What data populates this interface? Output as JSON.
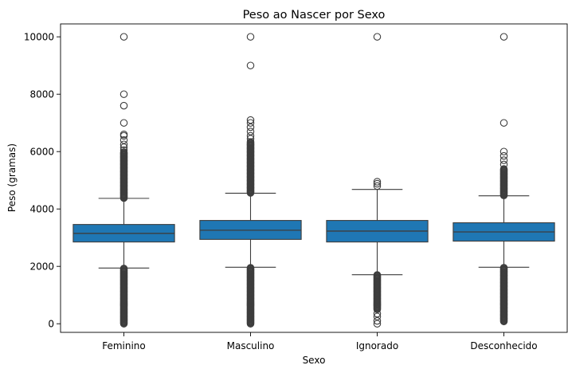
{
  "chart_data": {
    "type": "boxplot",
    "title": "Peso ao Nascer por Sexo",
    "xlabel": "Sexo",
    "ylabel": "Peso (gramas)",
    "ylim": [
      -300,
      10450
    ],
    "yticks": [
      0,
      2000,
      4000,
      6000,
      8000,
      10000
    ],
    "grid": false,
    "colors": {
      "box": "#1f77b4",
      "line": "#3d3d3d"
    },
    "categories": [
      "Feminino",
      "Masculino",
      "Ignorado",
      "Desconhecido"
    ],
    "boxes": [
      {
        "category": "Feminino",
        "whisker_low": 1940,
        "q1": 2850,
        "median": 3150,
        "q3": 3460,
        "whisker_high": 4370,
        "outlier_bands": [
          [
            0,
            1930
          ],
          [
            4380,
            6000
          ]
        ],
        "outliers": [
          6050,
          6150,
          6250,
          6400,
          6550,
          6600,
          7000,
          7600,
          8000,
          10000
        ]
      },
      {
        "category": "Masculino",
        "whisker_low": 1970,
        "q1": 2940,
        "median": 3260,
        "q3": 3600,
        "whisker_high": 4550,
        "outlier_bands": [
          [
            0,
            1960
          ],
          [
            4560,
            6350
          ]
        ],
        "outliers": [
          6450,
          6550,
          6700,
          6850,
          7000,
          7100,
          9000,
          10000
        ]
      },
      {
        "category": "Ignorado",
        "whisker_low": 1710,
        "q1": 2850,
        "median": 3230,
        "q3": 3600,
        "whisker_high": 4680,
        "outlier_bands": [
          [
            500,
            1700
          ]
        ],
        "outliers": [
          0,
          100,
          250,
          350,
          4800,
          4880,
          4950,
          10000
        ]
      },
      {
        "category": "Desconhecido",
        "whisker_low": 1970,
        "q1": 2880,
        "median": 3200,
        "q3": 3520,
        "whisker_high": 4460,
        "outlier_bands": [
          [
            80,
            1960
          ],
          [
            4470,
            5400
          ]
        ],
        "outliers": [
          5550,
          5700,
          5850,
          6000,
          7000,
          10000
        ]
      }
    ]
  }
}
